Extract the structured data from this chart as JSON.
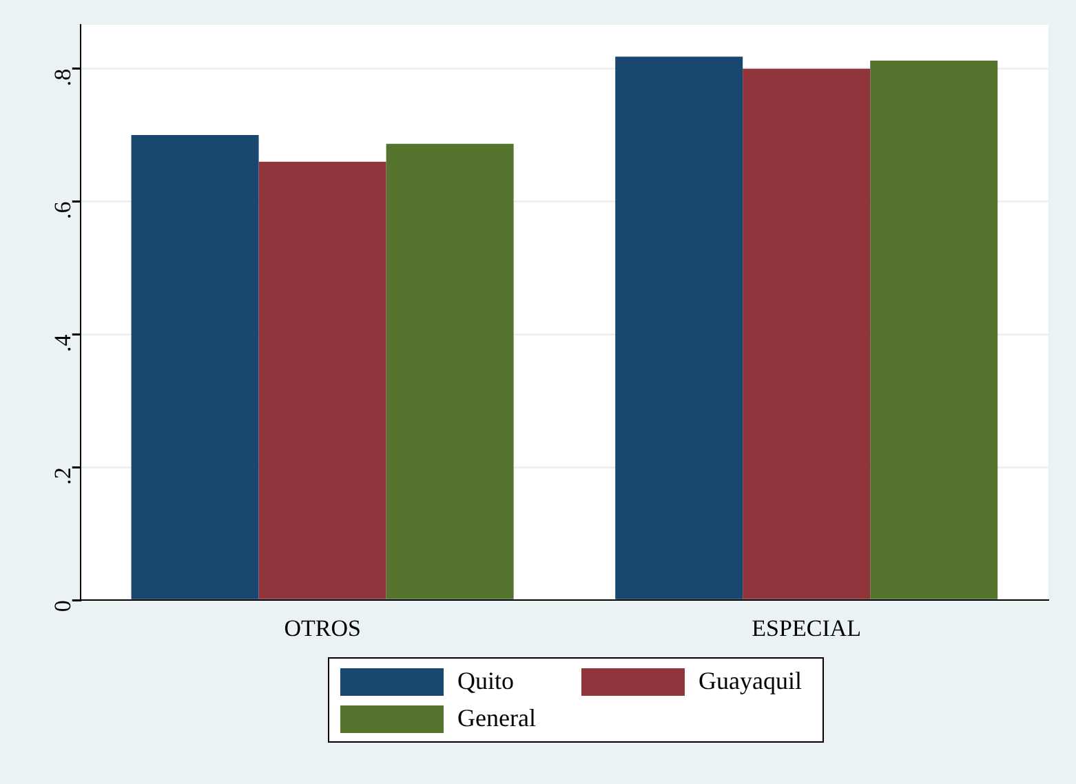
{
  "chart_data": {
    "type": "bar",
    "categories": [
      "OTROS",
      "ESPECIAL"
    ],
    "series": [
      {
        "name": "Quito",
        "color": "#1a476f",
        "values": [
          0.7,
          0.818
        ]
      },
      {
        "name": "Guayaquil",
        "color": "#90353b",
        "values": [
          0.66,
          0.8
        ]
      },
      {
        "name": "General",
        "color": "#55752f",
        "values": [
          0.687,
          0.812
        ]
      }
    ],
    "ylim": [
      0,
      0.866
    ],
    "yticks": [
      0,
      {
        "value": 0.2,
        "label": ".2"
      },
      {
        "value": 0.4,
        "label": ".4"
      },
      {
        "value": 0.6,
        "label": ".6"
      },
      {
        "value": 0.8,
        "label": ".8"
      }
    ],
    "grid": "y",
    "legend": "bottom"
  }
}
